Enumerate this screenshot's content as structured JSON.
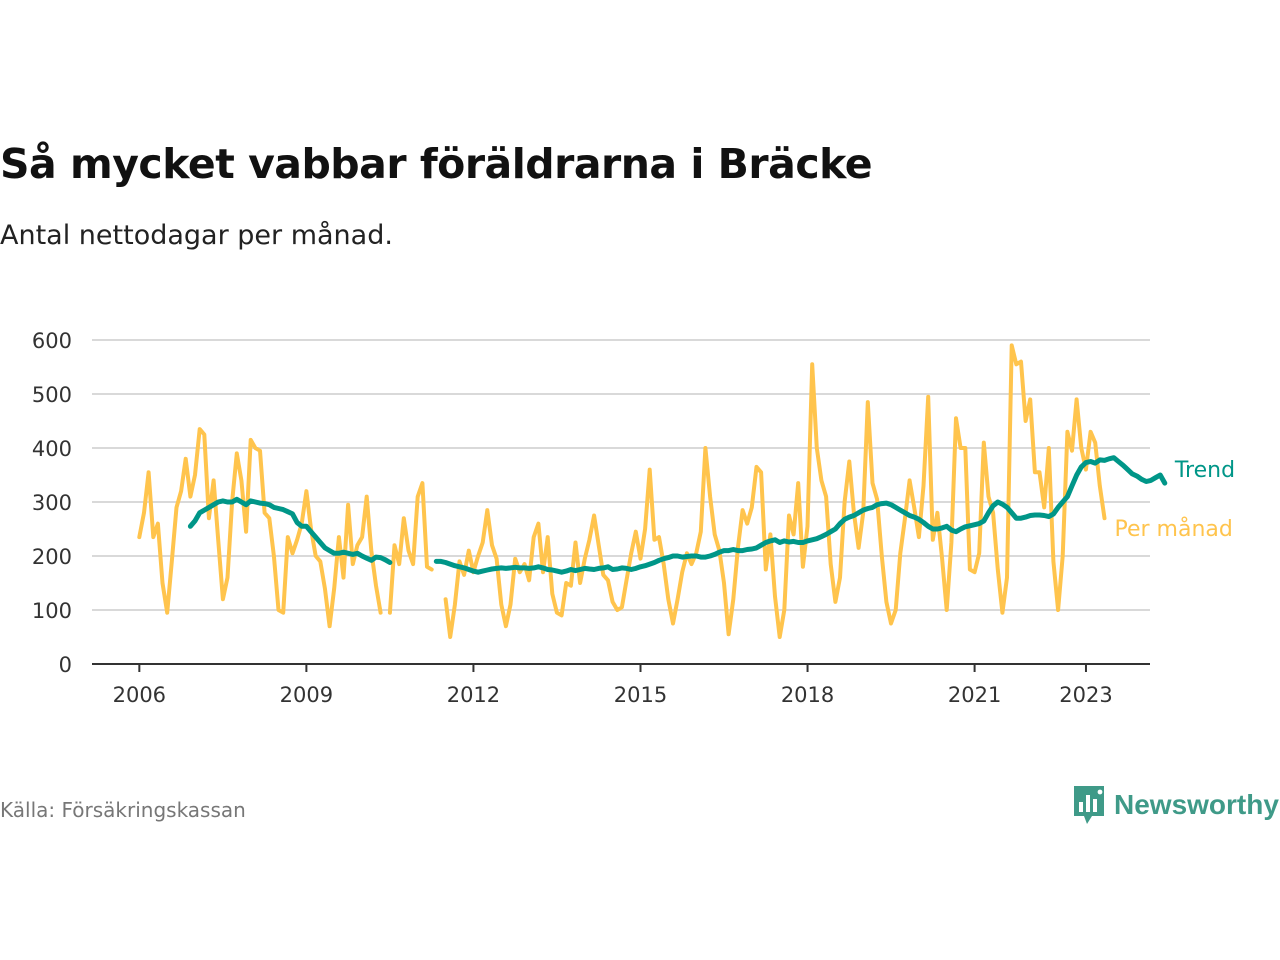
{
  "header": {
    "title": "Så mycket vabbar föräldrarna i Bräcke",
    "subtitle": "Antal nettodagar per månad."
  },
  "footer": {
    "source": "Källa: Försäkringskassan",
    "brand": "Newsworthy"
  },
  "colors": {
    "monthly": "#FFC44D",
    "trend": "#009688",
    "brand": "#3F9A88",
    "grid": "#d9d9d9",
    "axis": "#333333"
  },
  "chart_data": {
    "type": "line",
    "title": "Så mycket vabbar föräldrarna i Bräcke",
    "subtitle": "Antal nettodagar per månad.",
    "xlabel": "",
    "ylabel": "",
    "ylim": [
      0,
      600
    ],
    "xlim": [
      2005.15,
      2024.15
    ],
    "grid": true,
    "legend": "inline labels at the right end of each line",
    "yticks": [
      0,
      100,
      200,
      300,
      400,
      500,
      600
    ],
    "xticks": [
      2006,
      2009,
      2012,
      2015,
      2018,
      2021,
      2023
    ],
    "xtick_labels": [
      "2006",
      "2009",
      "2012",
      "2015",
      "2018",
      "2021",
      "2023"
    ],
    "x_unit": "decimal year, monthly steps",
    "series": [
      {
        "name": "Per månad",
        "label": "Per månad",
        "color": "#FFC44D",
        "start": 2006.0,
        "step": 0.08333,
        "values": [
          235,
          280,
          355,
          235,
          260,
          150,
          95,
          190,
          290,
          320,
          380,
          310,
          350,
          435,
          425,
          270,
          340,
          230,
          120,
          160,
          300,
          390,
          340,
          245,
          415,
          400,
          395,
          280,
          270,
          200,
          100,
          95,
          235,
          205,
          230,
          260,
          320,
          250,
          200,
          190,
          140,
          70,
          140,
          235,
          160,
          295,
          185,
          220,
          235,
          310,
          210,
          145,
          95,
          null,
          95,
          220,
          185,
          270,
          210,
          185,
          310,
          335,
          180,
          175,
          null,
          null,
          120,
          50,
          110,
          190,
          165,
          210,
          170,
          200,
          225,
          285,
          220,
          195,
          110,
          70,
          110,
          195,
          170,
          185,
          155,
          235,
          260,
          170,
          235,
          130,
          95,
          90,
          150,
          145,
          225,
          150,
          195,
          230,
          275,
          220,
          165,
          155,
          115,
          100,
          105,
          155,
          205,
          245,
          195,
          250,
          360,
          230,
          235,
          185,
          120,
          75,
          120,
          170,
          205,
          185,
          205,
          245,
          400,
          310,
          240,
          210,
          150,
          55,
          120,
          215,
          285,
          260,
          290,
          365,
          355,
          175,
          240,
          125,
          50,
          100,
          275,
          240,
          335,
          180,
          255,
          555,
          400,
          340,
          310,
          185,
          115,
          160,
          300,
          375,
          280,
          215,
          280,
          485,
          335,
          305,
          200,
          115,
          75,
          100,
          205,
          270,
          340,
          290,
          235,
          330,
          495,
          230,
          280,
          195,
          100,
          225,
          455,
          400,
          400,
          175,
          170,
          205,
          410,
          310,
          280,
          175,
          95,
          160,
          590,
          555,
          560,
          450,
          490,
          355,
          355,
          290,
          400,
          190,
          100,
          200,
          430,
          395,
          490,
          400,
          360,
          430,
          410,
          330,
          270
        ]
      },
      {
        "name": "Trend",
        "label": "Trend",
        "color": "#009688",
        "start": 2006.917,
        "step": 0.08333,
        "values": [
          255,
          265,
          280,
          285,
          290,
          295,
          300,
          302,
          300,
          300,
          305,
          300,
          295,
          302,
          300,
          298,
          297,
          295,
          290,
          288,
          286,
          282,
          278,
          262,
          255,
          255,
          245,
          235,
          225,
          215,
          210,
          205,
          205,
          207,
          205,
          203,
          205,
          200,
          196,
          192,
          198,
          197,
          193,
          188,
          null,
          null,
          null,
          null,
          null,
          null,
          null,
          null,
          null,
          190,
          190,
          188,
          185,
          182,
          180,
          178,
          175,
          172,
          170,
          172,
          174,
          176,
          177,
          178,
          177,
          178,
          179,
          178,
          178,
          177,
          178,
          180,
          178,
          175,
          174,
          172,
          170,
          172,
          175,
          173,
          175,
          177,
          176,
          175,
          177,
          178,
          180,
          175,
          176,
          178,
          177,
          175,
          177,
          180,
          182,
          185,
          188,
          192,
          195,
          197,
          200,
          200,
          198,
          199,
          200,
          200,
          198,
          198,
          200,
          203,
          207,
          210,
          210,
          212,
          210,
          210,
          212,
          213,
          215,
          220,
          225,
          228,
          230,
          225,
          228,
          226,
          227,
          225,
          225,
          228,
          230,
          232,
          236,
          240,
          245,
          250,
          260,
          268,
          272,
          275,
          280,
          285,
          288,
          290,
          295,
          297,
          298,
          295,
          290,
          285,
          280,
          275,
          272,
          268,
          262,
          255,
          250,
          250,
          252,
          255,
          248,
          245,
          250,
          254,
          256,
          258,
          260,
          265,
          280,
          293,
          300,
          296,
          290,
          280,
          270,
          270,
          272,
          275,
          276,
          276,
          275,
          273,
          278,
          290,
          300,
          310,
          330,
          350,
          365,
          373,
          375,
          372,
          378,
          377,
          380,
          382,
          375,
          368,
          360,
          352,
          348,
          342,
          338,
          340,
          345,
          350,
          335
        ]
      }
    ]
  }
}
